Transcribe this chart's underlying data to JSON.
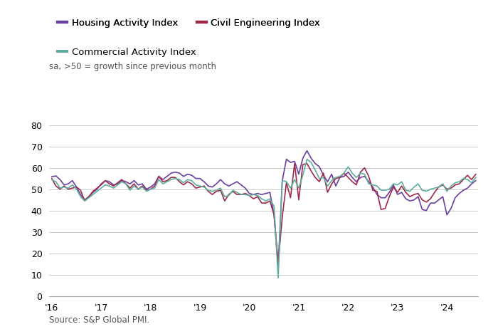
{
  "subtitle": "sa, >50 = growth since previous month",
  "source": "Source: S&P Global PMI.",
  "legend": [
    {
      "label": "Housing Activity Index",
      "color": "#6B3FA0"
    },
    {
      "label": "Civil Engineering Index",
      "color": "#9E2A47"
    },
    {
      "label": "Commercial Activity Index",
      "color": "#5FADA0"
    }
  ],
  "ylim": [
    0,
    80
  ],
  "yticks": [
    0,
    10,
    20,
    30,
    40,
    50,
    60,
    70,
    80
  ],
  "xtick_labels": [
    "'16",
    "'17",
    "'18",
    "'19",
    "'20",
    "'21",
    "'22",
    "'23",
    "'24"
  ],
  "housing": [
    55.8,
    56.2,
    54.5,
    52.0,
    52.5,
    54.0,
    51.0,
    47.5,
    45.0,
    46.5,
    48.5,
    50.0,
    52.5,
    54.0,
    53.5,
    52.0,
    52.5,
    54.0,
    53.5,
    52.5,
    54.0,
    52.0,
    52.5,
    50.0,
    51.0,
    52.5,
    56.0,
    54.5,
    56.0,
    57.5,
    58.0,
    57.5,
    56.0,
    57.0,
    56.5,
    55.0,
    55.0,
    53.5,
    51.5,
    51.0,
    52.5,
    54.5,
    52.5,
    51.5,
    52.5,
    53.5,
    52.0,
    50.5,
    48.0,
    47.5,
    48.0,
    47.5,
    48.0,
    48.5,
    38.0,
    14.0,
    54.0,
    64.0,
    62.5,
    63.0,
    57.0,
    64.5,
    68.0,
    64.5,
    62.0,
    60.5,
    56.5,
    53.5,
    57.0,
    51.5,
    55.5,
    56.0,
    58.0,
    55.5,
    53.5,
    55.5,
    56.0,
    53.5,
    51.0,
    47.5,
    46.0,
    46.0,
    48.5,
    52.0,
    47.5,
    48.5,
    45.5,
    44.5,
    45.0,
    46.5,
    40.5,
    40.0,
    43.5,
    43.5,
    45.0,
    46.5,
    38.0,
    41.0,
    46.0,
    48.0,
    49.5,
    50.5,
    52.5,
    54.0
  ],
  "civil": [
    55.0,
    51.5,
    50.0,
    51.5,
    50.0,
    50.5,
    51.0,
    49.5,
    44.5,
    46.5,
    49.0,
    50.5,
    52.0,
    54.0,
    52.5,
    51.5,
    53.0,
    54.5,
    52.5,
    50.5,
    52.5,
    50.0,
    51.5,
    49.5,
    50.0,
    51.5,
    56.0,
    53.5,
    54.0,
    55.5,
    55.5,
    53.5,
    52.0,
    53.5,
    52.5,
    50.5,
    51.0,
    51.5,
    49.0,
    47.5,
    49.0,
    49.5,
    44.5,
    47.5,
    49.0,
    47.5,
    47.5,
    48.0,
    47.0,
    45.5,
    46.5,
    43.5,
    43.5,
    44.5,
    38.0,
    15.5,
    37.0,
    53.0,
    46.0,
    62.0,
    45.0,
    61.5,
    62.0,
    58.5,
    55.5,
    53.5,
    57.5,
    48.5,
    52.5,
    55.0,
    55.5,
    57.5,
    55.5,
    53.5,
    52.0,
    58.0,
    60.0,
    56.0,
    49.5,
    49.0,
    40.5,
    41.0,
    46.5,
    51.0,
    48.5,
    51.5,
    48.5,
    46.5,
    47.5,
    48.0,
    45.0,
    44.0,
    45.5,
    48.5,
    51.0,
    52.0,
    50.0,
    50.5,
    52.0,
    52.5,
    54.5,
    56.5,
    54.5,
    57.0
  ],
  "commercial": [
    54.5,
    53.5,
    50.5,
    51.0,
    50.5,
    52.0,
    50.0,
    46.5,
    44.5,
    46.0,
    47.5,
    49.0,
    50.5,
    52.0,
    51.5,
    50.5,
    52.0,
    53.5,
    52.5,
    49.5,
    51.5,
    50.0,
    51.0,
    49.0,
    50.0,
    50.5,
    54.5,
    52.5,
    53.5,
    54.5,
    55.0,
    54.5,
    53.0,
    54.5,
    54.0,
    52.0,
    51.5,
    51.0,
    49.5,
    49.0,
    49.5,
    50.5,
    46.5,
    47.0,
    49.5,
    48.5,
    47.5,
    47.5,
    47.0,
    47.5,
    47.0,
    45.5,
    44.5,
    45.5,
    42.0,
    8.5,
    54.0,
    53.5,
    50.5,
    54.5,
    50.5,
    56.5,
    64.0,
    62.5,
    59.0,
    55.0,
    55.5,
    51.5,
    54.0,
    55.5,
    56.0,
    57.5,
    60.5,
    57.5,
    55.5,
    57.5,
    57.0,
    52.5,
    52.0,
    51.5,
    49.5,
    49.5,
    50.0,
    52.5,
    52.0,
    53.5,
    49.5,
    49.0,
    51.0,
    52.5,
    49.5,
    49.0,
    50.0,
    50.5,
    51.0,
    52.5,
    49.0,
    51.5,
    53.0,
    53.5,
    55.0,
    54.5,
    53.0,
    55.5
  ]
}
